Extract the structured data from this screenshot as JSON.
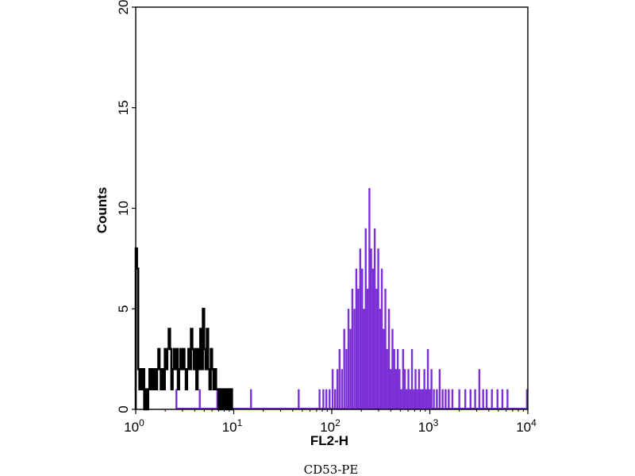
{
  "chart_data": {
    "type": "area",
    "xlabel": "FL2-H",
    "ylabel": "Counts",
    "caption": "CD53-PE",
    "x_scale": "log",
    "xlim": [
      1,
      10000
    ],
    "ylim": [
      0,
      20
    ],
    "x_ticks": [
      {
        "value": 1,
        "base": "10",
        "exp": "0"
      },
      {
        "value": 10,
        "base": "10",
        "exp": "1"
      },
      {
        "value": 100,
        "base": "10",
        "exp": "2"
      },
      {
        "value": 1000,
        "base": "10",
        "exp": "3"
      },
      {
        "value": 10000,
        "base": "10",
        "exp": "4"
      }
    ],
    "y_ticks": [
      0,
      5,
      10,
      15,
      20
    ],
    "grid": false,
    "series": [
      {
        "color": "#000000",
        "style": "outline",
        "points": [
          [
            1.0,
            8
          ],
          [
            1.03,
            7
          ],
          [
            1.06,
            2
          ],
          [
            1.09,
            1
          ],
          [
            1.12,
            2
          ],
          [
            1.15,
            1
          ],
          [
            1.18,
            2
          ],
          [
            1.22,
            0
          ],
          [
            1.26,
            1
          ],
          [
            1.3,
            0
          ],
          [
            1.34,
            1
          ],
          [
            1.38,
            2
          ],
          [
            1.42,
            1
          ],
          [
            1.46,
            2
          ],
          [
            1.5,
            1
          ],
          [
            1.55,
            2
          ],
          [
            1.6,
            1
          ],
          [
            1.65,
            2
          ],
          [
            1.7,
            3
          ],
          [
            1.75,
            2
          ],
          [
            1.8,
            1
          ],
          [
            1.86,
            2
          ],
          [
            1.92,
            1
          ],
          [
            1.98,
            3
          ],
          [
            2.04,
            2
          ],
          [
            2.1,
            3
          ],
          [
            2.17,
            4
          ],
          [
            2.24,
            3
          ],
          [
            2.31,
            1
          ],
          [
            2.38,
            2
          ],
          [
            2.45,
            3
          ],
          [
            2.53,
            2
          ],
          [
            2.61,
            3
          ],
          [
            2.69,
            1
          ],
          [
            2.77,
            2
          ],
          [
            2.86,
            3
          ],
          [
            2.95,
            2
          ],
          [
            3.04,
            3
          ],
          [
            3.14,
            2
          ],
          [
            3.24,
            1
          ],
          [
            3.34,
            2
          ],
          [
            3.44,
            3
          ],
          [
            3.55,
            2
          ],
          [
            3.66,
            4
          ],
          [
            3.78,
            3
          ],
          [
            3.9,
            2
          ],
          [
            4.02,
            3
          ],
          [
            4.15,
            1
          ],
          [
            4.28,
            3
          ],
          [
            4.41,
            2
          ],
          [
            4.55,
            4
          ],
          [
            4.69,
            2
          ],
          [
            4.84,
            5
          ],
          [
            4.99,
            3
          ],
          [
            5.15,
            2
          ],
          [
            5.31,
            4
          ],
          [
            5.48,
            2
          ],
          [
            5.65,
            1
          ],
          [
            5.83,
            3
          ],
          [
            6.01,
            2
          ],
          [
            6.2,
            1
          ],
          [
            6.4,
            2
          ],
          [
            6.6,
            1
          ],
          [
            6.81,
            1
          ],
          [
            7.02,
            0
          ],
          [
            7.24,
            1
          ],
          [
            7.47,
            0
          ],
          [
            7.71,
            1
          ],
          [
            7.95,
            0
          ],
          [
            8.2,
            1
          ],
          [
            8.46,
            0
          ],
          [
            8.73,
            1
          ],
          [
            9.0,
            0
          ],
          [
            9.3,
            1
          ],
          [
            9.6,
            0
          ],
          [
            10.0,
            0
          ]
        ]
      },
      {
        "color": "#7b2fd6",
        "style": "filled",
        "points": [
          [
            2.6,
            1
          ],
          [
            4.5,
            1
          ],
          [
            6.8,
            1
          ],
          [
            15,
            1
          ],
          [
            46,
            1
          ],
          [
            75,
            1
          ],
          [
            82,
            1
          ],
          [
            88,
            1
          ],
          [
            95,
            1
          ],
          [
            102,
            2
          ],
          [
            108,
            1
          ],
          [
            114,
            2
          ],
          [
            120,
            3
          ],
          [
            127,
            2
          ],
          [
            134,
            4
          ],
          [
            141,
            3
          ],
          [
            148,
            5
          ],
          [
            155,
            4
          ],
          [
            162,
            6
          ],
          [
            170,
            5
          ],
          [
            178,
            7
          ],
          [
            186,
            6
          ],
          [
            195,
            8
          ],
          [
            204,
            7
          ],
          [
            213,
            5
          ],
          [
            222,
            9
          ],
          [
            232,
            6
          ],
          [
            242,
            11
          ],
          [
            252,
            8
          ],
          [
            263,
            7
          ],
          [
            274,
            9
          ],
          [
            286,
            6
          ],
          [
            298,
            8
          ],
          [
            311,
            5
          ],
          [
            324,
            7
          ],
          [
            338,
            4
          ],
          [
            352,
            6
          ],
          [
            367,
            3
          ],
          [
            383,
            5
          ],
          [
            399,
            2
          ],
          [
            416,
            4
          ],
          [
            434,
            3
          ],
          [
            452,
            2
          ],
          [
            471,
            3
          ],
          [
            491,
            2
          ],
          [
            512,
            1
          ],
          [
            534,
            3
          ],
          [
            556,
            2
          ],
          [
            580,
            1
          ],
          [
            605,
            2
          ],
          [
            631,
            1
          ],
          [
            658,
            3
          ],
          [
            686,
            1
          ],
          [
            715,
            2
          ],
          [
            745,
            1
          ],
          [
            777,
            2
          ],
          [
            810,
            1
          ],
          [
            844,
            1
          ],
          [
            880,
            2
          ],
          [
            917,
            1
          ],
          [
            956,
            3
          ],
          [
            997,
            1
          ],
          [
            1040,
            2
          ],
          [
            1100,
            1
          ],
          [
            1180,
            1
          ],
          [
            1260,
            2
          ],
          [
            1350,
            1
          ],
          [
            1450,
            1
          ],
          [
            1560,
            1
          ],
          [
            1700,
            1
          ],
          [
            2000,
            1
          ],
          [
            2300,
            1
          ],
          [
            2600,
            1
          ],
          [
            2900,
            1
          ],
          [
            3200,
            2
          ],
          [
            3500,
            1
          ],
          [
            3800,
            1
          ],
          [
            4300,
            1
          ],
          [
            4900,
            1
          ],
          [
            5500,
            1
          ],
          [
            6200,
            1
          ],
          [
            9800,
            1
          ]
        ]
      }
    ]
  }
}
